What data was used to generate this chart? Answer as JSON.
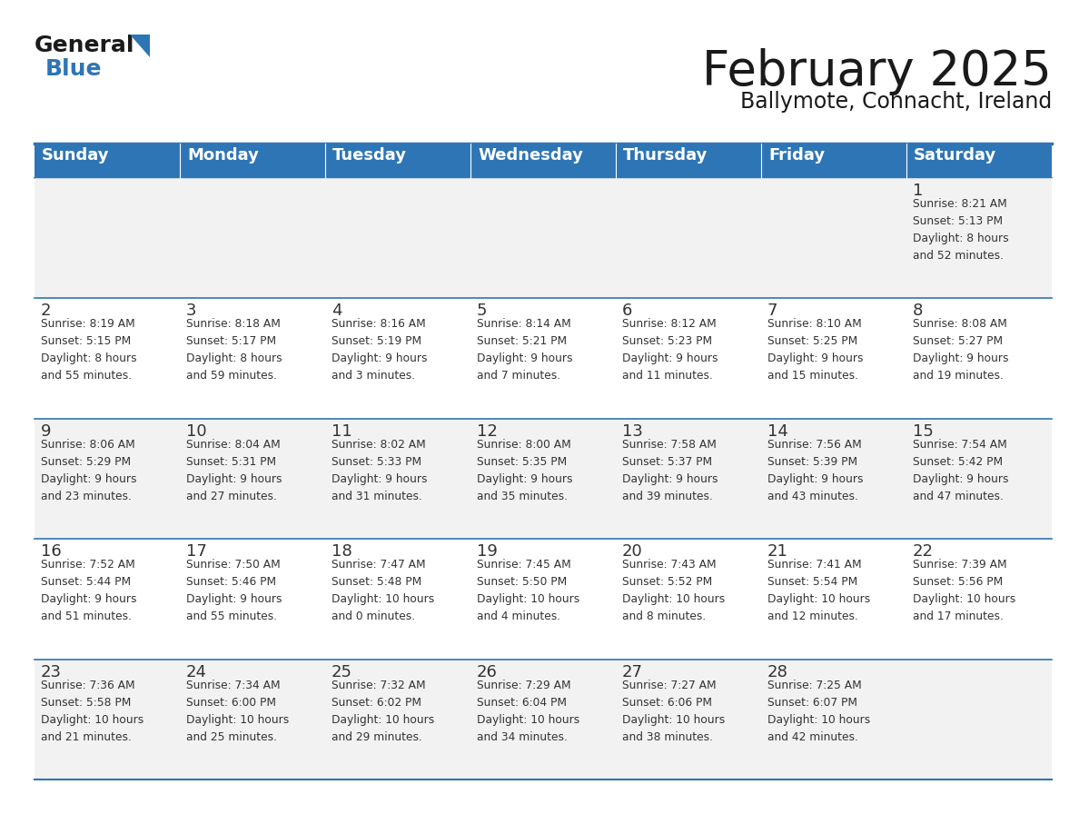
{
  "title": "February 2025",
  "subtitle": "Ballymote, Connacht, Ireland",
  "header_bg": "#2E75B6",
  "header_text_color": "#FFFFFF",
  "cell_bg_odd": "#F2F2F2",
  "cell_bg_even": "#FFFFFF",
  "border_color": "#2E75B6",
  "text_color": "#333333",
  "day_headers": [
    "Sunday",
    "Monday",
    "Tuesday",
    "Wednesday",
    "Thursday",
    "Friday",
    "Saturday"
  ],
  "weeks": [
    [
      {
        "day": "",
        "info": ""
      },
      {
        "day": "",
        "info": ""
      },
      {
        "day": "",
        "info": ""
      },
      {
        "day": "",
        "info": ""
      },
      {
        "day": "",
        "info": ""
      },
      {
        "day": "",
        "info": ""
      },
      {
        "day": "1",
        "info": "Sunrise: 8:21 AM\nSunset: 5:13 PM\nDaylight: 8 hours\nand 52 minutes."
      }
    ],
    [
      {
        "day": "2",
        "info": "Sunrise: 8:19 AM\nSunset: 5:15 PM\nDaylight: 8 hours\nand 55 minutes."
      },
      {
        "day": "3",
        "info": "Sunrise: 8:18 AM\nSunset: 5:17 PM\nDaylight: 8 hours\nand 59 minutes."
      },
      {
        "day": "4",
        "info": "Sunrise: 8:16 AM\nSunset: 5:19 PM\nDaylight: 9 hours\nand 3 minutes."
      },
      {
        "day": "5",
        "info": "Sunrise: 8:14 AM\nSunset: 5:21 PM\nDaylight: 9 hours\nand 7 minutes."
      },
      {
        "day": "6",
        "info": "Sunrise: 8:12 AM\nSunset: 5:23 PM\nDaylight: 9 hours\nand 11 minutes."
      },
      {
        "day": "7",
        "info": "Sunrise: 8:10 AM\nSunset: 5:25 PM\nDaylight: 9 hours\nand 15 minutes."
      },
      {
        "day": "8",
        "info": "Sunrise: 8:08 AM\nSunset: 5:27 PM\nDaylight: 9 hours\nand 19 minutes."
      }
    ],
    [
      {
        "day": "9",
        "info": "Sunrise: 8:06 AM\nSunset: 5:29 PM\nDaylight: 9 hours\nand 23 minutes."
      },
      {
        "day": "10",
        "info": "Sunrise: 8:04 AM\nSunset: 5:31 PM\nDaylight: 9 hours\nand 27 minutes."
      },
      {
        "day": "11",
        "info": "Sunrise: 8:02 AM\nSunset: 5:33 PM\nDaylight: 9 hours\nand 31 minutes."
      },
      {
        "day": "12",
        "info": "Sunrise: 8:00 AM\nSunset: 5:35 PM\nDaylight: 9 hours\nand 35 minutes."
      },
      {
        "day": "13",
        "info": "Sunrise: 7:58 AM\nSunset: 5:37 PM\nDaylight: 9 hours\nand 39 minutes."
      },
      {
        "day": "14",
        "info": "Sunrise: 7:56 AM\nSunset: 5:39 PM\nDaylight: 9 hours\nand 43 minutes."
      },
      {
        "day": "15",
        "info": "Sunrise: 7:54 AM\nSunset: 5:42 PM\nDaylight: 9 hours\nand 47 minutes."
      }
    ],
    [
      {
        "day": "16",
        "info": "Sunrise: 7:52 AM\nSunset: 5:44 PM\nDaylight: 9 hours\nand 51 minutes."
      },
      {
        "day": "17",
        "info": "Sunrise: 7:50 AM\nSunset: 5:46 PM\nDaylight: 9 hours\nand 55 minutes."
      },
      {
        "day": "18",
        "info": "Sunrise: 7:47 AM\nSunset: 5:48 PM\nDaylight: 10 hours\nand 0 minutes."
      },
      {
        "day": "19",
        "info": "Sunrise: 7:45 AM\nSunset: 5:50 PM\nDaylight: 10 hours\nand 4 minutes."
      },
      {
        "day": "20",
        "info": "Sunrise: 7:43 AM\nSunset: 5:52 PM\nDaylight: 10 hours\nand 8 minutes."
      },
      {
        "day": "21",
        "info": "Sunrise: 7:41 AM\nSunset: 5:54 PM\nDaylight: 10 hours\nand 12 minutes."
      },
      {
        "day": "22",
        "info": "Sunrise: 7:39 AM\nSunset: 5:56 PM\nDaylight: 10 hours\nand 17 minutes."
      }
    ],
    [
      {
        "day": "23",
        "info": "Sunrise: 7:36 AM\nSunset: 5:58 PM\nDaylight: 10 hours\nand 21 minutes."
      },
      {
        "day": "24",
        "info": "Sunrise: 7:34 AM\nSunset: 6:00 PM\nDaylight: 10 hours\nand 25 minutes."
      },
      {
        "day": "25",
        "info": "Sunrise: 7:32 AM\nSunset: 6:02 PM\nDaylight: 10 hours\nand 29 minutes."
      },
      {
        "day": "26",
        "info": "Sunrise: 7:29 AM\nSunset: 6:04 PM\nDaylight: 10 hours\nand 34 minutes."
      },
      {
        "day": "27",
        "info": "Sunrise: 7:27 AM\nSunset: 6:06 PM\nDaylight: 10 hours\nand 38 minutes."
      },
      {
        "day": "28",
        "info": "Sunrise: 7:25 AM\nSunset: 6:07 PM\nDaylight: 10 hours\nand 42 minutes."
      },
      {
        "day": "",
        "info": ""
      }
    ]
  ]
}
